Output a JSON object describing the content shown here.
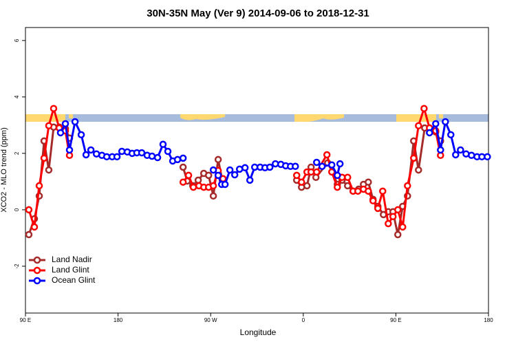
{
  "chart_data": {
    "type": "line",
    "title": "30N-35N May (Ver 9)   2014-09-06 to 2018-12-31",
    "x_label": "Longitude",
    "y_label": "XCO2 - MLO trend (ppm)",
    "xlim": [
      90,
      540
    ],
    "xticks": [
      {
        "value": 90,
        "label": "90 E"
      },
      180,
      {
        "value": 270,
        "label": "90 W"
      },
      {
        "value": 360,
        "label": "0"
      },
      {
        "value": 450,
        "label": "90 E"
      },
      {
        "value": 540,
        "label": "180"
      }
    ],
    "ylim": [
      -3.66,
      6.46
    ],
    "yticks": [
      -2,
      0,
      2,
      4,
      6
    ],
    "legend": "bottomleft",
    "series": [
      {
        "name": "Land Nadir",
        "color": "#a52a2a",
        "x": [
          93.3,
          98.7,
          103.4,
          108.1,
          112.7,
          117.4,
          122.8,
          128.8,
          132.8,
          null,
          243.2,
          247.2,
          252.6,
          257.9,
          263.3,
          268,
          272.6,
          277.3,
          281.3,
          null,
          353.6,
          358.3,
          363.6,
          367.6,
          372.3,
          383.7,
          388.4,
          393.1,
          397.7,
          403.1,
          408.4,
          413.8,
          418.5,
          423.2,
          427.8,
          432.5,
          437.9,
          442.6,
          447.2,
          451.9,
          456.6,
          461.3,
          467.3,
          472,
          478,
          484,
          488.7,
          493.4
        ],
        "values": [
          -0.88,
          -0.32,
          0.49,
          2.44,
          1.41,
          2.93,
          2.93,
          2.88,
          2.54,
          null,
          1.51,
          1.02,
          0.85,
          1.05,
          1.29,
          1.22,
          0.49,
          1.78,
          1.05,
          null,
          1.05,
          0.8,
          0.85,
          1.51,
          1.15,
          1.66,
          1.34,
          0.9,
          1.05,
          0.85,
          0.66,
          0.73,
          0.9,
          0.98,
          0.37,
          0.12,
          -0.17,
          -0.07,
          -0.07,
          -0.88,
          0.12,
          0.49,
          2.44,
          1.41,
          2.9,
          2.85,
          2.76,
          2.44
        ]
      },
      {
        "name": "Land Glint",
        "color": "#ff0000",
        "x": [
          93.3,
          98.7,
          103.4,
          108.1,
          112.7,
          117.4,
          122.8,
          128.8,
          132.8,
          null,
          243.2,
          248.5,
          253.2,
          258.6,
          263.3,
          268,
          272.6,
          277.3,
          282,
          null,
          353.6,
          358.3,
          363.6,
          367.6,
          373,
          383,
          387.7,
          393.1,
          397.7,
          403.1,
          408.4,
          413.1,
          418.5,
          423.2,
          427.8,
          432.5,
          437.2,
          442.6,
          447.2,
          451.9,
          456.6,
          461.3,
          467.3,
          472,
          477.4,
          482.7,
          488.7,
          493.4
        ],
        "values": [
          0,
          -0.61,
          0.85,
          1.83,
          2.98,
          3.59,
          2.9,
          2.8,
          1.93,
          null,
          0.98,
          1.22,
          0.8,
          0.85,
          0.8,
          0.8,
          0.85,
          1.39,
          1.1,
          null,
          1.22,
          0.98,
          1.34,
          1.34,
          1.34,
          1.95,
          1.34,
          0.8,
          1.15,
          1.15,
          0.66,
          0.66,
          0.73,
          0.66,
          0.32,
          0.05,
          0.66,
          -0.49,
          -0.24,
          0,
          -0.61,
          0.85,
          1.83,
          2.98,
          3.59,
          2.9,
          2.8,
          1.93
        ]
      },
      {
        "name": "Ocean Glint",
        "color": "#0000ff",
        "x": [
          124.1,
          128.8,
          132.8,
          138.2,
          144.2,
          148.9,
          153.6,
          159,
          164.3,
          169,
          174.3,
          179,
          183.7,
          189,
          193.7,
          198.3,
          203,
          208.3,
          213,
          218.4,
          223.7,
          228.4,
          233.1,
          237.8,
          243.2,
          null,
          272.6,
          277.3,
          280.7,
          284,
          288.7,
          293.4,
          298.1,
          303.4,
          308.1,
          312.8,
          318.1,
          322.8,
          327.5,
          332.9,
          338.2,
          342.9,
          347.6,
          352.3,
          null,
          373,
          378.3,
          387.7,
          393.1,
          395.7,
          null,
          482.7,
          488.7,
          493.4,
          498.1,
          503.4,
          508.1,
          512.8,
          518.2,
          523.5,
          528.9,
          533.6,
          538.9
        ],
        "values": [
          2.73,
          3.05,
          2.12,
          3.12,
          2.66,
          1.95,
          2.12,
          1.98,
          1.93,
          1.88,
          1.88,
          1.88,
          2.07,
          2.05,
          2.0,
          2.02,
          2.02,
          1.93,
          1.9,
          1.85,
          2.32,
          2.07,
          1.73,
          1.78,
          1.83,
          null,
          1.41,
          1.22,
          0.9,
          0.9,
          1.41,
          1.24,
          1.44,
          1.49,
          1.05,
          1.51,
          1.51,
          1.49,
          1.51,
          1.63,
          1.61,
          1.56,
          1.54,
          1.54,
          null,
          1.68,
          1.54,
          1.59,
          1.22,
          1.63,
          null,
          2.73,
          3.05,
          2.12,
          3.12,
          2.66,
          1.95,
          2.12,
          1.98,
          1.93,
          1.88,
          1.88,
          1.88
        ]
      }
    ]
  }
}
